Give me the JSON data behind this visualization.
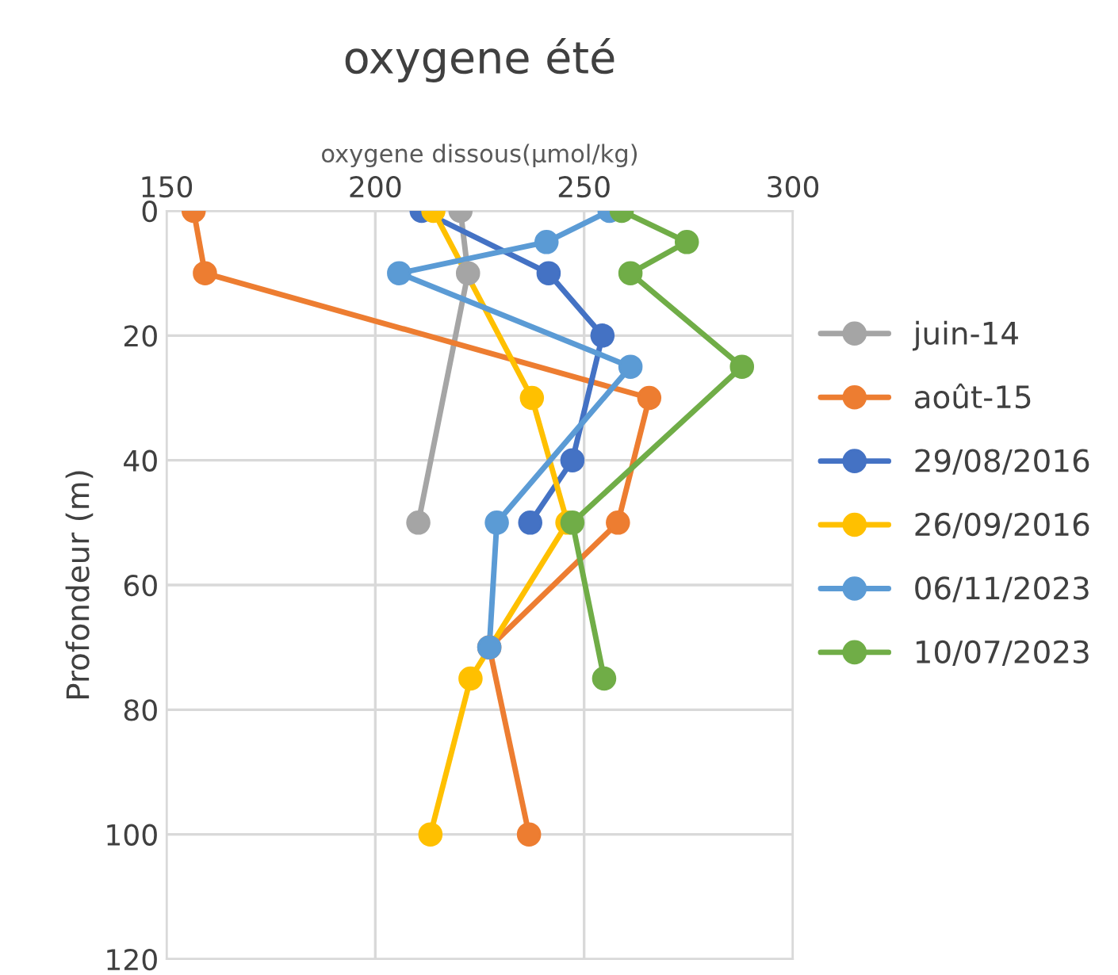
{
  "chart_data": {
    "type": "line",
    "title": "oxygene été",
    "xlabel": "oxygene dissous(µmol/kg)",
    "ylabel": "Profondeur (m)",
    "xlim": [
      150,
      300
    ],
    "xticks": [
      150,
      200,
      250,
      300
    ],
    "ylim": [
      120,
      0
    ],
    "yticks": [
      0,
      20,
      40,
      60,
      80,
      100,
      120
    ],
    "grid": true,
    "legend": "right",
    "marker": "circle",
    "line_style": "solid",
    "series": [
      {
        "name": "juin-14",
        "color": "#a5a5a5",
        "x": [
          220.4,
          222.2,
          210.3
        ],
        "values": [
          0,
          10,
          50
        ]
      },
      {
        "name": "août-15",
        "color": "#ed7d31",
        "x": [
          156.5,
          159.2,
          265.6,
          258.1,
          227.3,
          236.8
        ],
        "values": [
          0,
          10,
          30,
          50,
          70,
          100
        ]
      },
      {
        "name": "29/08/2016",
        "color": "#4472c4",
        "x": [
          211.1,
          241.5,
          254.4,
          247.2,
          237.1
        ],
        "values": [
          0,
          10,
          20,
          40,
          50
        ]
      },
      {
        "name": "26/09/2016",
        "color": "#ffc000",
        "x": [
          213.9,
          237.5,
          246,
          222.8,
          213.2
        ],
        "values": [
          0,
          30,
          50,
          75,
          100
        ]
      },
      {
        "name": "06/11/2023",
        "color": "#5b9bd5",
        "x": [
          256.1,
          241,
          205.7,
          261.1,
          229.1,
          227.3
        ],
        "values": [
          0,
          5,
          10,
          25,
          50,
          70
        ]
      },
      {
        "name": "10/07/2023",
        "color": "#70ad47",
        "x": [
          259,
          274.6,
          261.1,
          287.8,
          247.2,
          254.8
        ],
        "values": [
          0,
          5,
          10,
          25,
          50,
          75
        ]
      }
    ]
  }
}
